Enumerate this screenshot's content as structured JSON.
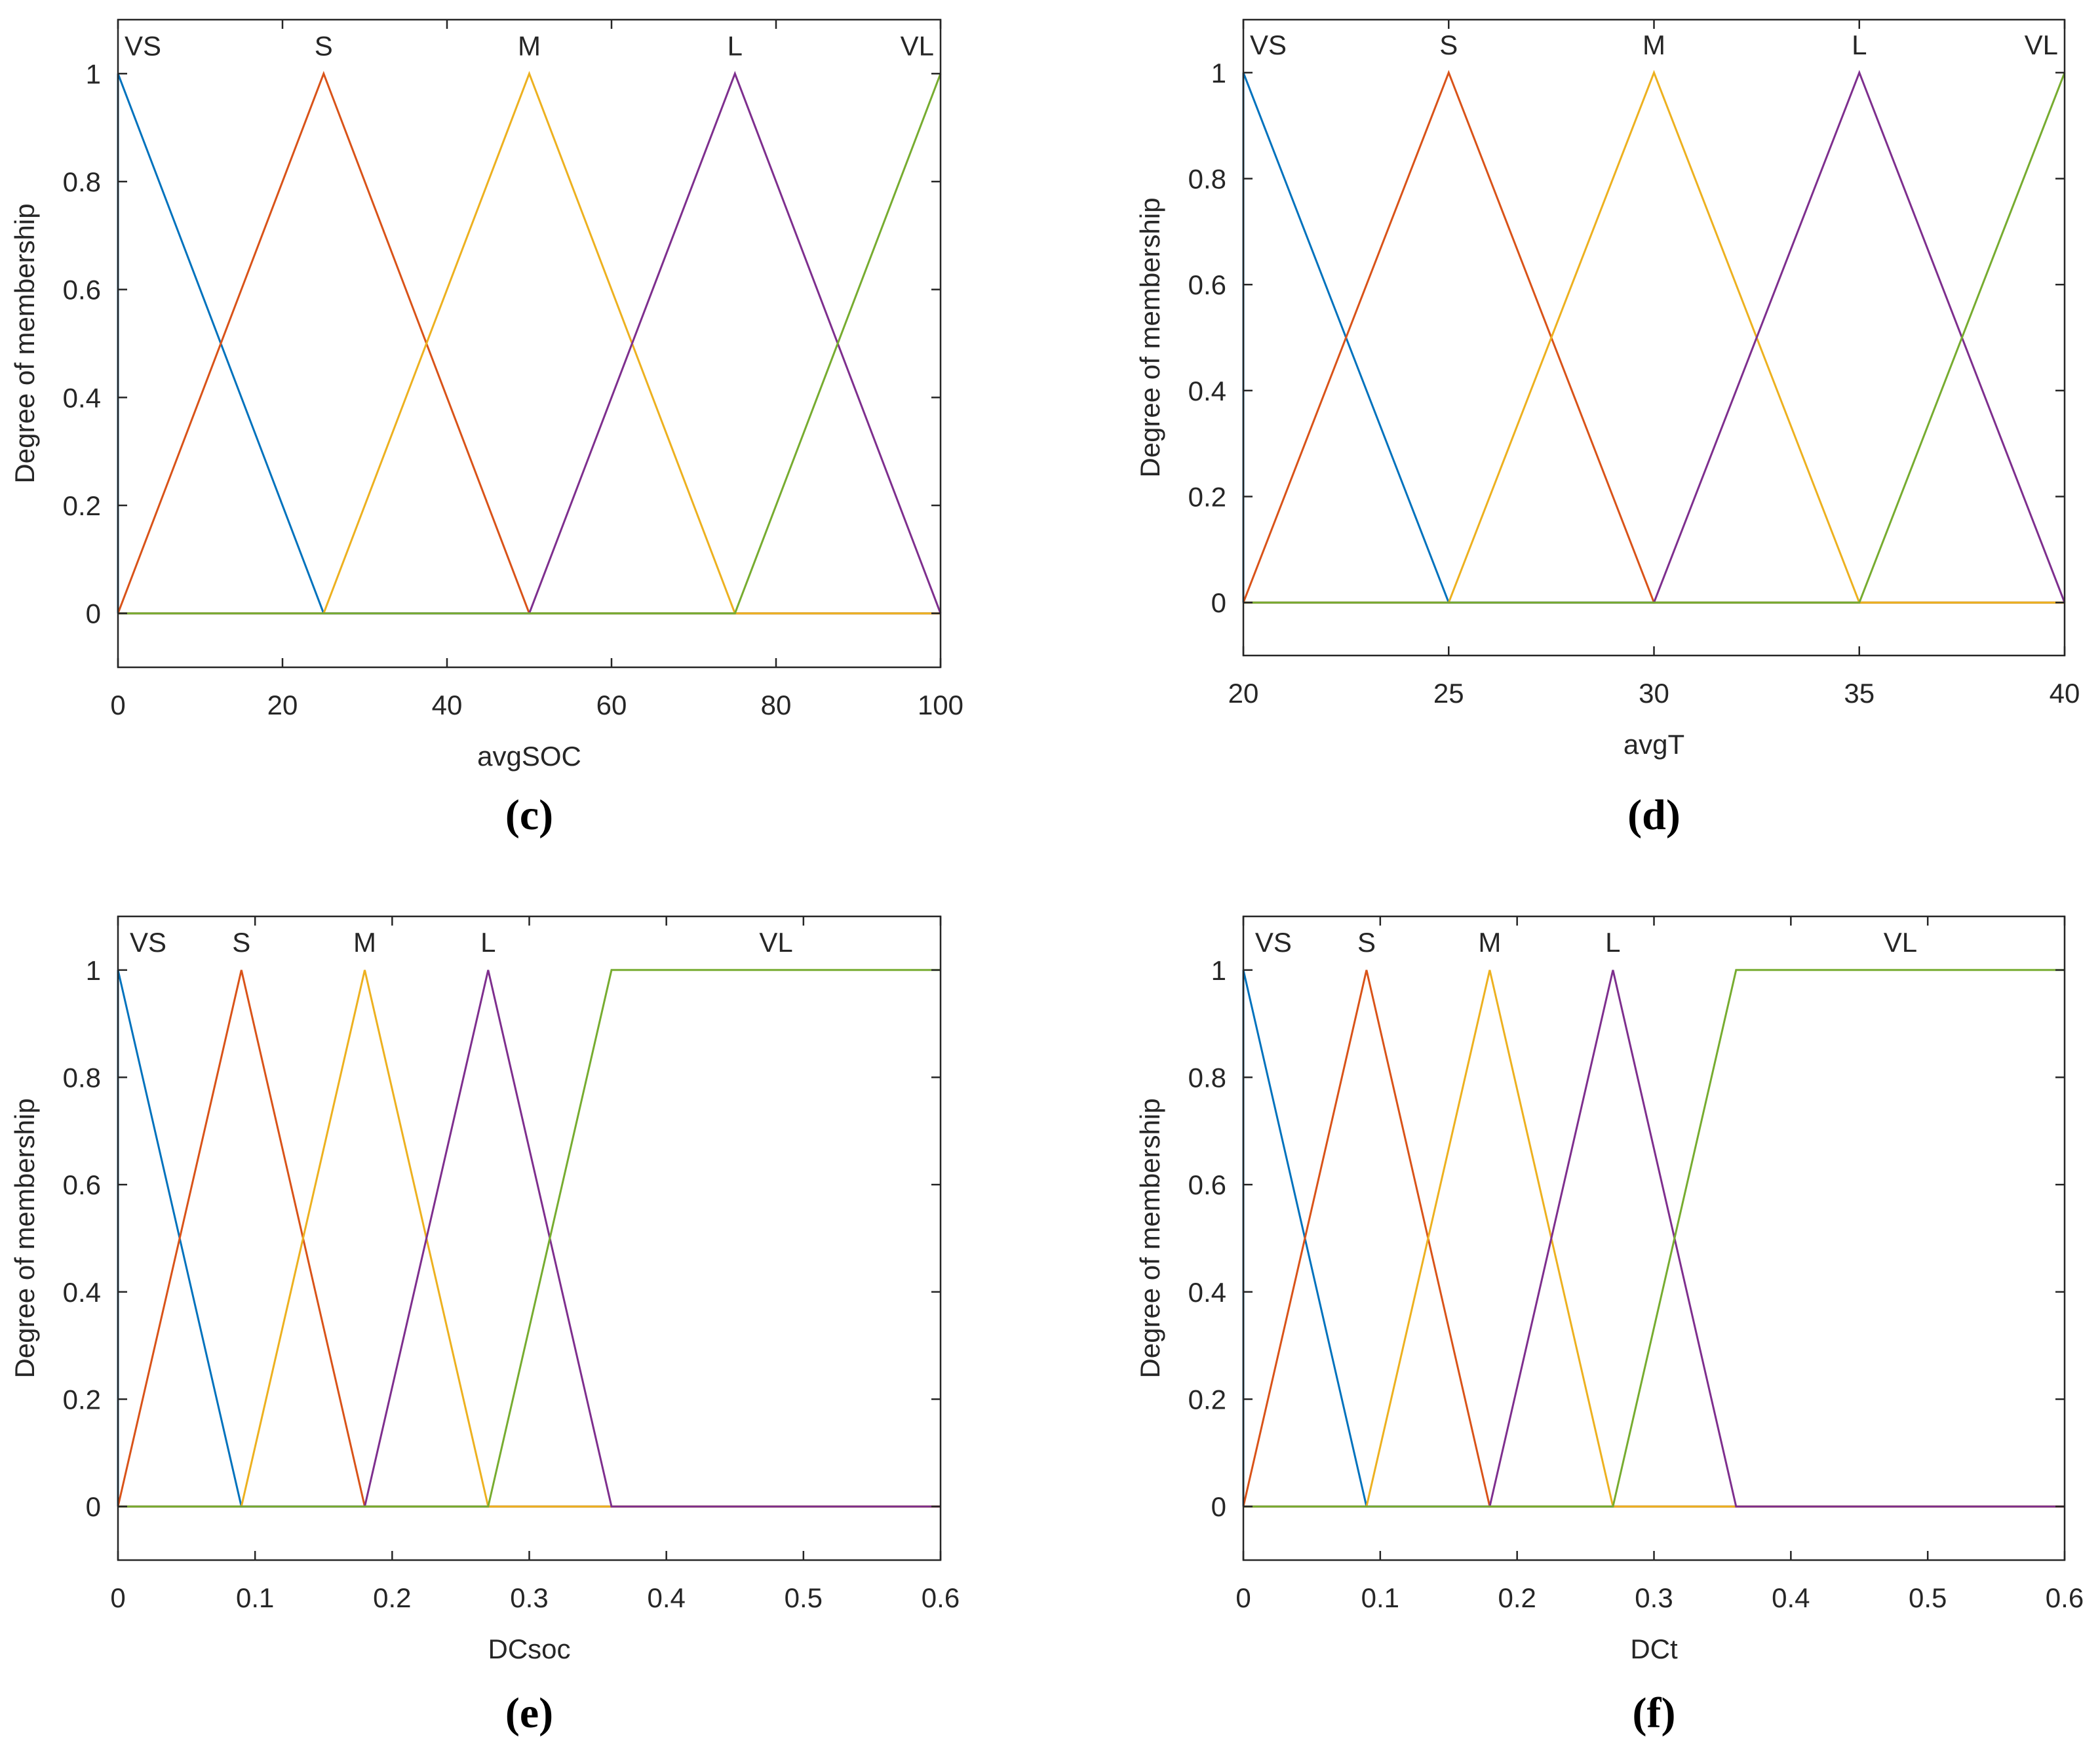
{
  "chart_data": [
    {
      "type": "line",
      "panel_label": "(c)",
      "xlabel": "avgSOC",
      "ylabel": "Degree of membership",
      "xlim": [
        0,
        100
      ],
      "ylim": [
        -0.1,
        1.1
      ],
      "xticks": [
        0,
        20,
        40,
        60,
        80,
        100
      ],
      "yticks": [
        0,
        0.2,
        0.4,
        0.6,
        0.8,
        1
      ],
      "grid": false,
      "series": [
        {
          "name": "VS",
          "color": "#0072BD",
          "x": [
            0,
            0,
            25,
            100
          ],
          "y": [
            0,
            1,
            0,
            0
          ]
        },
        {
          "name": "S",
          "color": "#D95319",
          "x": [
            0,
            25,
            50,
            100
          ],
          "y": [
            0,
            1,
            0,
            0
          ]
        },
        {
          "name": "M",
          "color": "#EDB120",
          "x": [
            0,
            25,
            50,
            75,
            100
          ],
          "y": [
            0,
            0,
            1,
            0,
            0
          ]
        },
        {
          "name": "L",
          "color": "#7E2F8E",
          "x": [
            0,
            50,
            75,
            100,
            100
          ],
          "y": [
            0,
            0,
            1,
            0,
            0
          ]
        },
        {
          "name": "VL",
          "color": "#77AC30",
          "x": [
            0,
            75,
            100
          ],
          "y": [
            0,
            0,
            1
          ]
        }
      ],
      "mf_labels": [
        {
          "text": "VS",
          "x": 0
        },
        {
          "text": "S",
          "x": 25
        },
        {
          "text": "M",
          "x": 50
        },
        {
          "text": "L",
          "x": 75
        },
        {
          "text": "VL",
          "x": 100
        }
      ]
    },
    {
      "type": "line",
      "panel_label": "(d)",
      "xlabel": "avgT",
      "ylabel": "Degree of membership",
      "xlim": [
        20,
        40
      ],
      "ylim": [
        -0.1,
        1.1
      ],
      "xticks": [
        20,
        25,
        30,
        35,
        40
      ],
      "yticks": [
        0,
        0.2,
        0.4,
        0.6,
        0.8,
        1
      ],
      "grid": false,
      "series": [
        {
          "name": "VS",
          "color": "#0072BD",
          "x": [
            20,
            20,
            25,
            40
          ],
          "y": [
            0,
            1,
            0,
            0
          ]
        },
        {
          "name": "S",
          "color": "#D95319",
          "x": [
            20,
            25,
            30,
            40
          ],
          "y": [
            0,
            1,
            0,
            0
          ]
        },
        {
          "name": "M",
          "color": "#EDB120",
          "x": [
            20,
            25,
            30,
            35,
            40
          ],
          "y": [
            0,
            0,
            1,
            0,
            0
          ]
        },
        {
          "name": "L",
          "color": "#7E2F8E",
          "x": [
            20,
            30,
            35,
            40,
            40
          ],
          "y": [
            0,
            0,
            1,
            0,
            0
          ]
        },
        {
          "name": "VL",
          "color": "#77AC30",
          "x": [
            20,
            35,
            40
          ],
          "y": [
            0,
            0,
            1
          ]
        }
      ],
      "mf_labels": [
        {
          "text": "VS",
          "x": 20
        },
        {
          "text": "S",
          "x": 25
        },
        {
          "text": "M",
          "x": 30
        },
        {
          "text": "L",
          "x": 35
        },
        {
          "text": "VL",
          "x": 40
        }
      ]
    },
    {
      "type": "line",
      "panel_label": "(e)",
      "xlabel": "DCsoc",
      "ylabel": "Degree of membership",
      "xlim": [
        0,
        0.6
      ],
      "ylim": [
        -0.1,
        1.1
      ],
      "xticks": [
        0,
        0.1,
        0.2,
        0.3,
        0.4,
        0.5,
        0.6
      ],
      "yticks": [
        0,
        0.2,
        0.4,
        0.6,
        0.8,
        1
      ],
      "grid": false,
      "series": [
        {
          "name": "VS",
          "color": "#0072BD",
          "x": [
            0,
            0,
            0.09,
            0.6
          ],
          "y": [
            0,
            1,
            0,
            0
          ]
        },
        {
          "name": "S",
          "color": "#D95319",
          "x": [
            0,
            0.09,
            0.18,
            0.6
          ],
          "y": [
            0,
            1,
            0,
            0
          ]
        },
        {
          "name": "M",
          "color": "#EDB120",
          "x": [
            0,
            0.09,
            0.18,
            0.27,
            0.6
          ],
          "y": [
            0,
            0,
            1,
            0,
            0
          ]
        },
        {
          "name": "L",
          "color": "#7E2F8E",
          "x": [
            0,
            0.18,
            0.27,
            0.36,
            0.6
          ],
          "y": [
            0,
            0,
            1,
            0,
            0
          ]
        },
        {
          "name": "VL",
          "color": "#77AC30",
          "x": [
            0,
            0.27,
            0.36,
            0.6
          ],
          "y": [
            0,
            0,
            1,
            1
          ]
        }
      ],
      "mf_labels": [
        {
          "text": "VS",
          "x": 0.022
        },
        {
          "text": "S",
          "x": 0.09
        },
        {
          "text": "M",
          "x": 0.18
        },
        {
          "text": "L",
          "x": 0.27
        },
        {
          "text": "VL",
          "x": 0.48
        }
      ]
    },
    {
      "type": "line",
      "panel_label": "(f)",
      "xlabel": "DCt",
      "ylabel": "Degree of membership",
      "xlim": [
        0,
        0.6
      ],
      "ylim": [
        -0.1,
        1.1
      ],
      "xticks": [
        0,
        0.1,
        0.2,
        0.3,
        0.4,
        0.5,
        0.6
      ],
      "yticks": [
        0,
        0.2,
        0.4,
        0.6,
        0.8,
        1
      ],
      "grid": false,
      "series": [
        {
          "name": "VS",
          "color": "#0072BD",
          "x": [
            0,
            0,
            0.09,
            0.6
          ],
          "y": [
            0,
            1,
            0,
            0
          ]
        },
        {
          "name": "S",
          "color": "#D95319",
          "x": [
            0,
            0.09,
            0.18,
            0.6
          ],
          "y": [
            0,
            1,
            0,
            0
          ]
        },
        {
          "name": "M",
          "color": "#EDB120",
          "x": [
            0,
            0.09,
            0.18,
            0.27,
            0.6
          ],
          "y": [
            0,
            0,
            1,
            0,
            0
          ]
        },
        {
          "name": "L",
          "color": "#7E2F8E",
          "x": [
            0,
            0.18,
            0.27,
            0.36,
            0.6
          ],
          "y": [
            0,
            0,
            1,
            0,
            0
          ]
        },
        {
          "name": "VL",
          "color": "#77AC30",
          "x": [
            0,
            0.27,
            0.36,
            0.6
          ],
          "y": [
            0,
            0,
            1,
            1
          ]
        }
      ],
      "mf_labels": [
        {
          "text": "VS",
          "x": 0.022
        },
        {
          "text": "S",
          "x": 0.09
        },
        {
          "text": "M",
          "x": 0.18
        },
        {
          "text": "L",
          "x": 0.27
        },
        {
          "text": "VL",
          "x": 0.48
        }
      ]
    }
  ]
}
